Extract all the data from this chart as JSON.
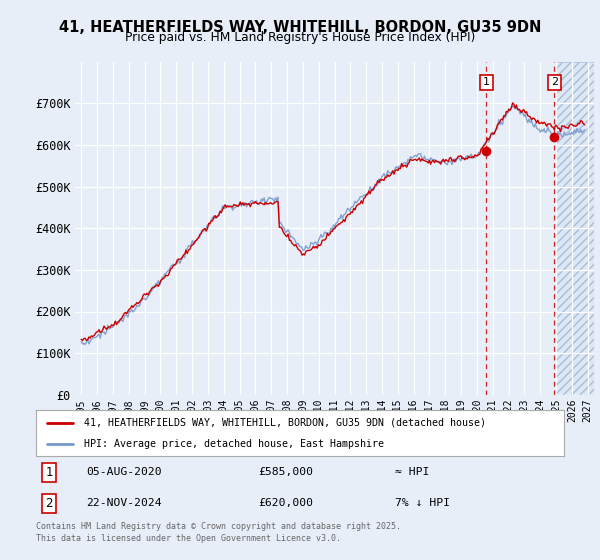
{
  "title_line1": "41, HEATHERFIELDS WAY, WHITEHILL, BORDON, GU35 9DN",
  "title_line2": "Price paid vs. HM Land Registry's House Price Index (HPI)",
  "background_color": "#e8eef8",
  "plot_bg_color": "#e8eef8",
  "grid_color": "#ffffff",
  "ylim": [
    0,
    800000
  ],
  "yticks": [
    0,
    100000,
    200000,
    300000,
    400000,
    500000,
    600000,
    700000
  ],
  "ytick_labels": [
    "£0",
    "£100K",
    "£200K",
    "£300K",
    "£400K",
    "£500K",
    "£600K",
    "£700K"
  ],
  "legend_line1": "41, HEATHERFIELDS WAY, WHITEHILL, BORDON, GU35 9DN (detached house)",
  "legend_line2": "HPI: Average price, detached house, East Hampshire",
  "annotation1_num": "1",
  "annotation1_date": "05-AUG-2020",
  "annotation1_price": "£585,000",
  "annotation1_hpi": "≈ HPI",
  "annotation1_year": 2020.6,
  "annotation1_value": 585000,
  "annotation2_num": "2",
  "annotation2_date": "22-NOV-2024",
  "annotation2_price": "£620,000",
  "annotation2_hpi": "7% ↓ HPI",
  "annotation2_year": 2024.9,
  "annotation2_value": 620000,
  "footer": "Contains HM Land Registry data © Crown copyright and database right 2025.\nThis data is licensed under the Open Government Licence v3.0.",
  "hpi_color": "#7799cc",
  "price_color": "#cc0000",
  "dashed_color": "#cc0000",
  "future_shade": "#dde8f5",
  "marker_color": "#cc0000"
}
